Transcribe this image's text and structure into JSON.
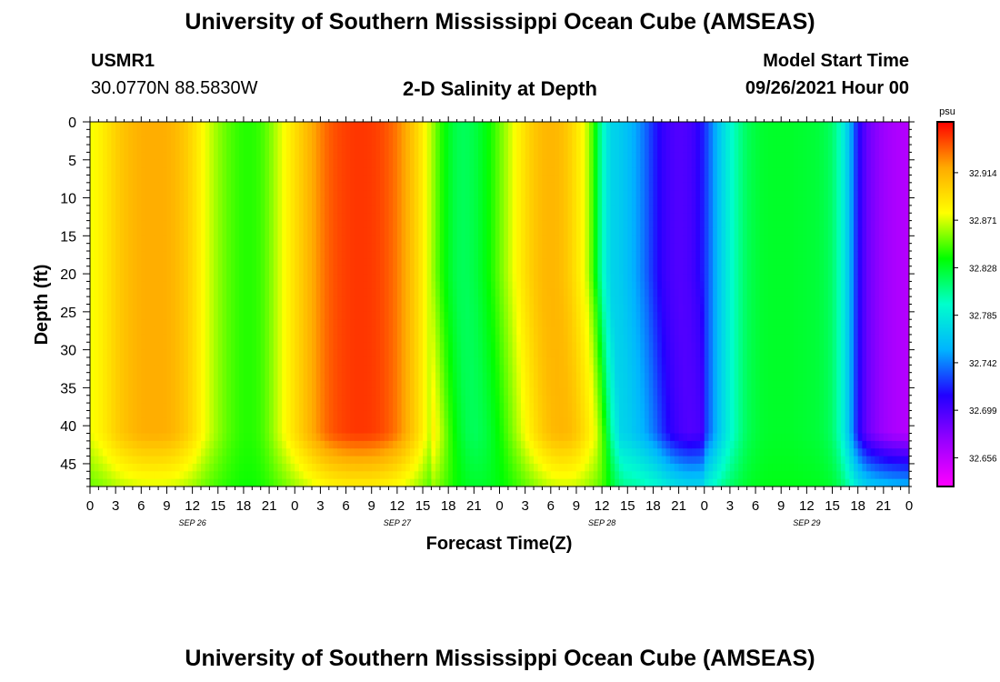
{
  "header": {
    "title": "University of Southern Mississippi Ocean Cube (AMSEAS)",
    "station": "USMR1",
    "coords": "30.0770N  88.5830W",
    "chart_title": "2-D Salinity at Depth",
    "model_start_label": "Model Start Time",
    "model_start_value": "09/26/2021 Hour 00"
  },
  "footer": {
    "title": "University of Southern Mississippi Ocean Cube (AMSEAS)"
  },
  "chart_data": {
    "type": "heatmap",
    "title": "2-D Salinity at Depth",
    "xlabel": "Forecast Time(Z)",
    "ylabel": "Depth (ft)",
    "x_tick_labels": [
      "0",
      "3",
      "6",
      "9",
      "12",
      "15",
      "18",
      "21",
      "0",
      "3",
      "6",
      "9",
      "12",
      "15",
      "18",
      "21",
      "0",
      "3",
      "6",
      "9",
      "12",
      "15",
      "18",
      "21",
      "0",
      "3",
      "6",
      "9",
      "12",
      "15",
      "18",
      "21",
      "0"
    ],
    "date_labels": [
      "SEP 26",
      "SEP 27",
      "SEP 28",
      "SEP 29"
    ],
    "x_range_hours": [
      0,
      96
    ],
    "y_ticks": [
      0,
      5,
      10,
      15,
      20,
      25,
      30,
      35,
      40,
      45
    ],
    "ylim": [
      0,
      48
    ],
    "y_inverted": true,
    "colorbar": {
      "unit": "psu",
      "ticks": [
        32.914,
        32.871,
        32.828,
        32.785,
        32.742,
        32.699,
        32.656
      ],
      "range": [
        32.63,
        32.96
      ],
      "colors": [
        "#ff00ff",
        "#9900ff",
        "#2200ff",
        "#00b4ff",
        "#00ffcc",
        "#00ff00",
        "#ffff00",
        "#ffaa00",
        "#ff0000"
      ]
    },
    "surface_salinity_profile": {
      "hours": [
        0,
        1,
        2,
        3,
        4,
        5,
        6,
        7,
        8,
        9,
        10,
        11,
        12,
        13,
        14,
        15,
        16,
        17,
        18,
        19,
        20,
        21,
        22,
        23,
        24,
        25,
        26,
        27,
        28,
        29,
        30,
        31,
        32,
        33,
        34,
        35,
        36,
        37,
        38,
        39,
        40,
        41,
        42,
        43,
        44,
        45,
        46,
        47,
        48,
        49,
        50,
        51,
        52,
        53,
        54,
        55,
        56,
        57,
        58,
        59,
        60,
        61,
        62,
        63,
        64,
        65,
        66,
        67,
        68,
        69,
        70,
        71,
        72,
        73,
        74,
        75,
        76,
        77,
        78,
        79,
        80,
        81,
        82,
        83,
        84,
        85,
        86,
        87,
        88,
        89,
        90,
        91,
        92,
        93,
        94,
        95,
        96
      ],
      "values": [
        32.875,
        32.882,
        32.89,
        32.9,
        32.907,
        32.912,
        32.916,
        32.917,
        32.917,
        32.916,
        32.912,
        32.905,
        32.895,
        32.882,
        32.87,
        32.86,
        32.852,
        32.846,
        32.842,
        32.842,
        32.846,
        32.855,
        32.868,
        32.88,
        32.893,
        32.905,
        32.917,
        32.928,
        32.937,
        32.942,
        32.945,
        32.947,
        32.947,
        32.946,
        32.943,
        32.938,
        32.93,
        32.918,
        32.903,
        32.885,
        32.865,
        32.845,
        32.83,
        32.82,
        32.818,
        32.822,
        32.83,
        32.84,
        32.853,
        32.866,
        32.88,
        32.893,
        32.904,
        32.911,
        32.913,
        32.911,
        32.903,
        32.89,
        32.875,
        32.845,
        32.8,
        32.772,
        32.768,
        32.76,
        32.75,
        32.738,
        32.722,
        32.708,
        32.7,
        32.696,
        32.698,
        32.705,
        32.722,
        32.745,
        32.77,
        32.79,
        32.806,
        32.818,
        32.824,
        32.827,
        32.828,
        32.828,
        32.828,
        32.827,
        32.826,
        32.825,
        32.822,
        32.815,
        32.795,
        32.76,
        32.715,
        32.69,
        32.678,
        32.67,
        32.665,
        32.662,
        32.66
      ]
    }
  }
}
